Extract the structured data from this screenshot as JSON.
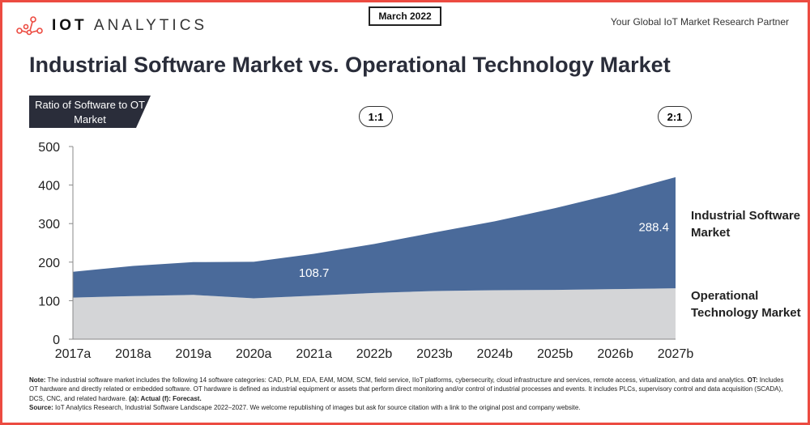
{
  "header": {
    "logo_text_bold": "IOT",
    "logo_text": "ANALYTICS",
    "date": "March 2022",
    "tagline": "Your Global IoT Market Research Partner",
    "title": "Industrial Software Market vs. Operational Technology Market",
    "ratio_label": "Ratio of Software to OT Market",
    "ratio_markers": [
      {
        "year": "2021a",
        "label": "1:1"
      },
      {
        "year": "2027b",
        "label": "2:1"
      }
    ]
  },
  "chart_data": {
    "type": "area",
    "stacked": true,
    "categories": [
      "2017a",
      "2018a",
      "2019a",
      "2020a",
      "2021a",
      "2022b",
      "2023b",
      "2024b",
      "2025b",
      "2026b",
      "2027b"
    ],
    "series": [
      {
        "name": "Operational Technology Market",
        "color": "#d4d5d7",
        "values": [
          108,
          112,
          115,
          106,
          113,
          120,
          125,
          127,
          128,
          130,
          132
        ]
      },
      {
        "name": "Industrial Software Market",
        "color": "#4a6a9a",
        "values": [
          67,
          78,
          85,
          95,
          108.7,
          127,
          152,
          179,
          212,
          248,
          288.4
        ]
      }
    ],
    "data_labels": [
      {
        "series": "Industrial Software Market",
        "category": "2021a",
        "text": "108.7"
      },
      {
        "series": "Industrial Software Market",
        "category": "2027b",
        "text": "288.4"
      }
    ],
    "yticks": [
      "0",
      "100",
      "200",
      "300",
      "400",
      "500"
    ],
    "ylim": [
      0,
      500
    ],
    "grid": false,
    "legend": "right",
    "legend_labels": [
      "Industrial Software Market",
      "Operational Technology Market"
    ]
  },
  "notes": {
    "note_label": "Note:",
    "note_text": " The industrial software market includes the following 14 software categories: CAD, PLM, EDA, EAM, MOM, SCM, field service, IIoT platforms, cybersecurity, cloud infrastructure and services, remote access, virtualization, and data and analytics. ",
    "ot_label": "OT:",
    "ot_text": " Includes OT hardware and directly related or embedded software. OT hardware is defined as industrial equipment or assets that perform direct monitoring and/or control of industrial processes and events. It includes PLCs, supervisory control and data acquisition (SCADA), DCS, CNC, and related hardware. ",
    "legend_text": "(a): Actual (f): Forecast.",
    "source_label": "Source:",
    "source_text": " IoT Analytics Research, Industrial Software Landscape 2022–2027. We welcome republishing of images but ask for source citation with a link to the original post and company website."
  }
}
